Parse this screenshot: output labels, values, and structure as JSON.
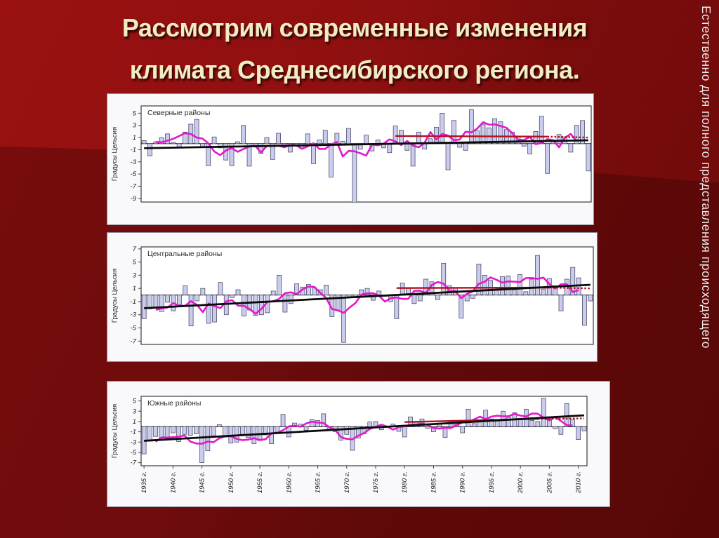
{
  "slide": {
    "title_line1": "Рассмотрим современные изменения",
    "title_line2": "климата Среднесибирского региона.",
    "side_note": "Естественно для полного представления происходящего",
    "colors": {
      "background_top": "#9b1111",
      "background_bottom": "#6d0a0a",
      "title_color": "#f2ecc4",
      "side_note_color": "#edeaea",
      "panel_background": "#f9f8fb"
    }
  },
  "chart_style": {
    "bar_fill": "#c9ccee",
    "bar_stroke": "#44445e",
    "smooth_line": "#e318cb",
    "trend_line": "#0a0a0a",
    "recent_line": "#b01020",
    "plot_background": "#ffffff",
    "axis_color": "#3c3c3c",
    "tick_text_color": "#222222"
  },
  "chart_data": [
    {
      "type": "bar",
      "region_label": "Северные районы",
      "ylabel": "Градусы Цельсия",
      "years_start": 1935,
      "years_end": 2011,
      "ylim": [
        -9.6,
        6.2
      ],
      "yticks": [
        5,
        3,
        1,
        -1,
        -3,
        -5,
        -7,
        -9
      ],
      "show_x_labels": false,
      "values": [
        0.5,
        -2.0,
        0.3,
        1.0,
        1.6,
        0.2,
        -0.7,
        1.9,
        3.2,
        4.0,
        -0.5,
        -3.6,
        1.1,
        -0.7,
        -2.7,
        -3.6,
        0.3,
        3.0,
        -3.7,
        -0.4,
        -1.6,
        1.0,
        -2.6,
        1.7,
        -0.3,
        -1.4,
        -0.4,
        -0.8,
        1.6,
        -3.3,
        0.6,
        2.2,
        -5.5,
        1.7,
        0.4,
        2.5,
        -9.7,
        -0.9,
        1.4,
        -1.2,
        0.6,
        -0.7,
        -1.5,
        2.9,
        2.2,
        -1.1,
        -3.7,
        1.9,
        -0.9,
        0.8,
        2.7,
        5.0,
        -4.3,
        3.8,
        -0.6,
        -1.1,
        5.6,
        2.1,
        3.2,
        2.6,
        4.1,
        3.6,
        2.3,
        1.9,
        1.1,
        -0.4,
        -1.7,
        2.0,
        4.5,
        -4.9,
        0.6,
        1.5,
        1.1,
        -1.4,
        3.0,
        3.8,
        -4.5
      ],
      "trend_line": {
        "x": [
          1935,
          2011
        ],
        "y": [
          -0.75,
          0.55
        ]
      },
      "recent_line_solid": {
        "x": [
          1978,
          2004
        ],
        "y": [
          1.25,
          1.15
        ]
      },
      "recent_line_dashed": {
        "x": [
          2004,
          2011
        ],
        "y": [
          1.15,
          1.0
        ]
      },
      "smooth_window": 5
    },
    {
      "type": "bar",
      "region_label": "Центральные районы",
      "ylabel": "Градусы Цельсия",
      "years_start": 1935,
      "years_end": 2011,
      "ylim": [
        -7.5,
        7.3
      ],
      "yticks": [
        7,
        5,
        3,
        1,
        -1,
        -3,
        -5,
        -7
      ],
      "show_x_labels": false,
      "values": [
        -3.6,
        -2.1,
        -2.0,
        -2.5,
        -1.1,
        -2.4,
        -1.5,
        1.4,
        -4.7,
        -0.9,
        1.0,
        -4.3,
        -4.1,
        1.9,
        -3.0,
        -0.4,
        0.8,
        -3.2,
        -2.3,
        -3.1,
        -3.0,
        -2.7,
        0.6,
        3.0,
        -2.6,
        -1.3,
        1.7,
        1.2,
        1.6,
        1.1,
        0.8,
        1.5,
        -3.3,
        -2.4,
        -7.2,
        -0.3,
        -0.4,
        0.8,
        1.0,
        -0.8,
        0.6,
        -0.2,
        -1.0,
        -3.6,
        1.8,
        1.1,
        -1.3,
        -0.9,
        2.4,
        2.0,
        -0.7,
        4.8,
        1.4,
        1.1,
        -3.5,
        -0.9,
        -0.5,
        4.7,
        3.0,
        2.2,
        0.7,
        2.8,
        2.9,
        0.8,
        3.1,
        0.5,
        2.4,
        6.0,
        0.9,
        2.5,
        1.4,
        -2.4,
        2.4,
        4.2,
        2.6,
        -4.6,
        -0.9
      ],
      "trend_line": {
        "x": [
          1935,
          2011
        ],
        "y": [
          -2.0,
          1.55
        ]
      },
      "recent_line_solid": {
        "x": [
          1978,
          2004
        ],
        "y": [
          1.05,
          1.12
        ]
      },
      "recent_line_dashed": {
        "x": [
          2004,
          2011
        ],
        "y": [
          1.12,
          1.0
        ]
      },
      "smooth_window": 5
    },
    {
      "type": "bar",
      "region_label": "Южные районы",
      "ylabel": "Градусы Цельсия",
      "years_start": 1935,
      "years_end": 2011,
      "ylim": [
        -7.6,
        5.9
      ],
      "yticks": [
        5,
        3,
        1,
        -1,
        -3,
        -5,
        -7
      ],
      "show_x_labels": true,
      "x_tick_labels": [
        "1935 г.",
        "1940 г.",
        "1945 г.",
        "1950 г.",
        "1955 г.",
        "1960 г.",
        "1965 г.",
        "1970 г.",
        "1975 г.",
        "1980 г.",
        "1985 г.",
        "1990 г.",
        "1995 г.",
        "2000 г.",
        "2005 г.",
        "2010 г."
      ],
      "values": [
        -5.3,
        -2.8,
        -1.9,
        -2.2,
        -2.4,
        -1.2,
        -2.9,
        -1.5,
        -1.7,
        -1.4,
        -7.0,
        -4.7,
        -1.8,
        0.4,
        -2.0,
        -3.2,
        -3.0,
        -1.5,
        -2.1,
        -3.3,
        -2.7,
        -1.6,
        -3.3,
        -1.3,
        2.4,
        -2.0,
        0.7,
        0.5,
        -0.7,
        1.4,
        1.2,
        2.5,
        -0.5,
        -1.0,
        -2.6,
        -1.5,
        -4.6,
        -2.2,
        -1.4,
        0.9,
        1.0,
        -0.6,
        0.1,
        0.5,
        -0.9,
        -2.0,
        1.9,
        0.9,
        1.5,
        -0.3,
        -1.0,
        0.6,
        -2.1,
        1.0,
        0.4,
        -1.2,
        3.4,
        0.6,
        1.0,
        3.2,
        1.5,
        1.1,
        3.0,
        1.8,
        2.7,
        1.6,
        3.4,
        1.2,
        1.0,
        5.5,
        1.5,
        -0.4,
        -1.5,
        4.5,
        1.4,
        -2.5,
        -0.8
      ],
      "trend_line": {
        "x": [
          1935,
          2011
        ],
        "y": [
          -2.75,
          2.2
        ]
      },
      "recent_line_solid": {
        "x": [
          1980,
          2003
        ],
        "y": [
          0.9,
          1.5
        ]
      },
      "recent_line_dashed": {
        "x": [
          2003,
          2011
        ],
        "y": [
          1.5,
          1.6
        ]
      },
      "smooth_window": 5
    }
  ]
}
